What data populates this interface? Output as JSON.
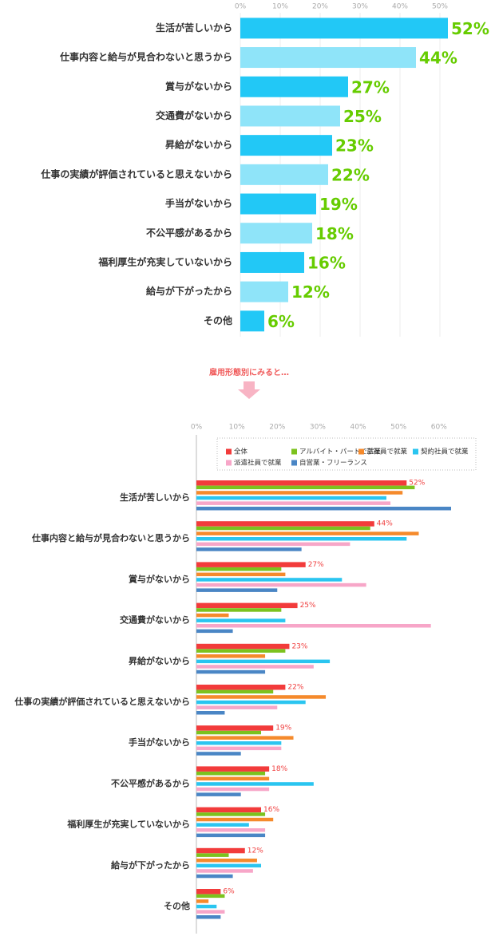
{
  "chart_data": [
    {
      "type": "bar",
      "categories": [
        "生活が苦しいから",
        "仕事内容と給与が見合わないと思うから",
        "賞与がないから",
        "交通費がないから",
        "昇給がないから",
        "仕事の実績が評価されていると思えないから",
        "手当がないから",
        "不公平感があるから",
        "福利厚生が充実していないから",
        "給与が下がったから",
        "その他"
      ],
      "values": [
        52,
        44,
        27,
        25,
        23,
        22,
        19,
        18,
        16,
        12,
        6
      ],
      "value_labels": [
        "52%",
        "44%",
        "27%",
        "25%",
        "23%",
        "22%",
        "19%",
        "18%",
        "16%",
        "12%",
        "6%"
      ],
      "colors": [
        "#22c8f6",
        "#8fe4f9"
      ],
      "label_color": "#66cc00",
      "xlim": [
        0,
        53
      ],
      "xticks": [
        {
          "value": 0,
          "label": "0%"
        },
        {
          "value": 10,
          "label": "10%"
        },
        {
          "value": 20,
          "label": "20%"
        },
        {
          "value": 30,
          "label": "30%"
        },
        {
          "value": 40,
          "label": "40%"
        },
        {
          "value": 50,
          "label": "50%"
        }
      ],
      "grid": true
    },
    {
      "type": "grouped_bar",
      "title": "雇用形態別にみると…",
      "categories": [
        "生活が苦しいから",
        "仕事内容と給与が見合わないと思うから",
        "賞与がないから",
        "交通費がないから",
        "昇給がないから",
        "仕事の実績が評価されていると思えないから",
        "手当がないから",
        "不公平感があるから",
        "福利厚生が充実していないから",
        "給与が下がったから",
        "その他"
      ],
      "series": [
        {
          "name": "全体",
          "color": "#f23b3b",
          "values": [
            52,
            44,
            27,
            25,
            23,
            22,
            19,
            18,
            16,
            12,
            6
          ],
          "value_labels": [
            "52%",
            "44%",
            "27%",
            "25%",
            "23%",
            "22%",
            "19%",
            "18%",
            "16%",
            "12%",
            "6%"
          ]
        },
        {
          "name": "アルバイト・パートで就業",
          "color": "#7cc21e",
          "values": [
            54,
            43,
            21,
            21,
            22,
            19,
            16,
            17,
            17,
            8,
            7
          ]
        },
        {
          "name": "正社員で就業",
          "color": "#f58a2c",
          "values": [
            51,
            55,
            22,
            8,
            17,
            32,
            24,
            18,
            19,
            15,
            3
          ]
        },
        {
          "name": "契約社員で就業",
          "color": "#2ac5f0",
          "values": [
            47,
            52,
            36,
            22,
            33,
            27,
            21,
            29,
            13,
            16,
            5
          ]
        },
        {
          "name": "派遣社員で就業",
          "color": "#f7a6c8",
          "values": [
            48,
            38,
            42,
            58,
            29,
            20,
            21,
            18,
            17,
            14,
            7
          ]
        },
        {
          "name": "自営業・フリーランス",
          "color": "#4a86c5",
          "values": [
            63,
            26,
            20,
            9,
            17,
            7,
            11,
            11,
            17,
            9,
            6
          ]
        }
      ],
      "xlim": [
        0,
        63
      ],
      "xticks": [
        {
          "value": 0,
          "label": "0%"
        },
        {
          "value": 10,
          "label": "10%"
        },
        {
          "value": 20,
          "label": "20%"
        },
        {
          "value": 30,
          "label": "30%"
        },
        {
          "value": 40,
          "label": "40%"
        },
        {
          "value": 50,
          "label": "50%"
        },
        {
          "value": 60,
          "label": "60%"
        }
      ],
      "grid": false
    }
  ]
}
